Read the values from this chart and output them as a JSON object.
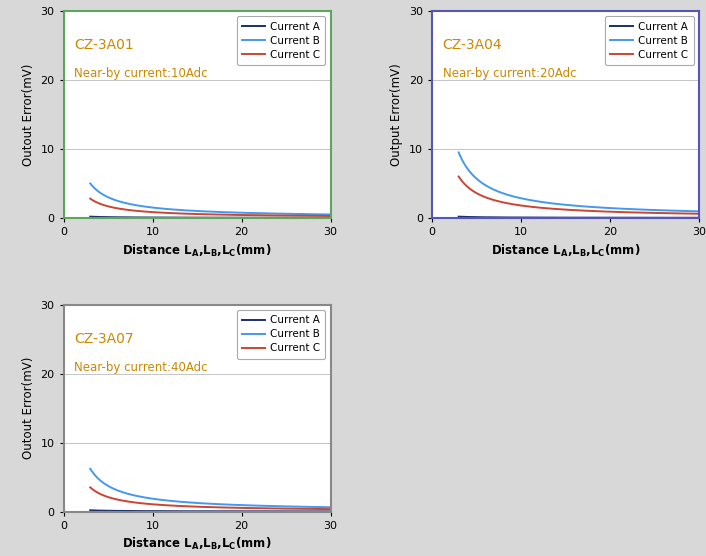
{
  "subplots": [
    {
      "title": "CZ-3A01",
      "nearby_label": "Near-by current:10Adc",
      "nearby_color": "#cc8800",
      "title_color": "#cc8800",
      "border_color": "#5ba85b",
      "ylim": [
        0,
        30
      ],
      "yticks": [
        0,
        10,
        20,
        30
      ],
      "xlim": [
        0,
        30
      ],
      "xticks": [
        0,
        10,
        20,
        30
      ],
      "xlabel": "Distance L_A,L_B,L_C(mm)",
      "ylabel": "Outout Error(mV)",
      "curves": [
        {
          "label": "Current A",
          "color": "#1a2f6e",
          "scale": 0.18,
          "x0": 3.0
        },
        {
          "label": "Current B",
          "color": "#4499ee",
          "scale": 5.0,
          "x0": 3.0
        },
        {
          "label": "Current C",
          "color": "#cc4433",
          "scale": 2.8,
          "x0": 3.0
        }
      ]
    },
    {
      "title": "CZ-3A04",
      "nearby_label": "Near-by current:20Adc",
      "nearby_color": "#cc8800",
      "title_color": "#cc8800",
      "border_color": "#5555bb",
      "ylim": [
        0,
        30
      ],
      "yticks": [
        0,
        10,
        20,
        30
      ],
      "xlim": [
        0,
        30
      ],
      "xticks": [
        0,
        10,
        20,
        30
      ],
      "xlabel": "Distance L_A,L_B,L_C(mm)",
      "ylabel": "Output Error(mV)",
      "curves": [
        {
          "label": "Current A",
          "color": "#1a2f6e",
          "scale": 0.18,
          "x0": 3.0
        },
        {
          "label": "Current B",
          "color": "#4499ee",
          "scale": 9.5,
          "x0": 3.0
        },
        {
          "label": "Current C",
          "color": "#cc4433",
          "scale": 6.0,
          "x0": 3.0
        }
      ]
    },
    {
      "title": "CZ-3A07",
      "nearby_label": "Near-by current:40Adc",
      "nearby_color": "#cc8800",
      "title_color": "#cc8800",
      "border_color": "#888888",
      "ylim": [
        0,
        30
      ],
      "yticks": [
        0,
        10,
        20,
        30
      ],
      "xlim": [
        0,
        30
      ],
      "xticks": [
        0,
        10,
        20,
        30
      ],
      "xlabel": "Distance L_A,L_B,L_C(mm)",
      "ylabel": "Outout Error(mV)",
      "curves": [
        {
          "label": "Current A",
          "color": "#1a2f6e",
          "scale": 0.18,
          "x0": 3.0
        },
        {
          "label": "Current B",
          "color": "#4499ee",
          "scale": 6.2,
          "x0": 3.0
        },
        {
          "label": "Current C",
          "color": "#cc4433",
          "scale": 3.5,
          "x0": 3.0
        }
      ]
    }
  ],
  "x_start": 3.0,
  "fig_bg": "#d8d8d8",
  "plot_bg": "#ffffff",
  "grid_color": "#aaaaaa",
  "legend_fontsize": 7.5,
  "axis_label_fontsize": 8.5,
  "tick_fontsize": 8,
  "title_fontsize": 10,
  "nearby_fontsize": 8.5
}
